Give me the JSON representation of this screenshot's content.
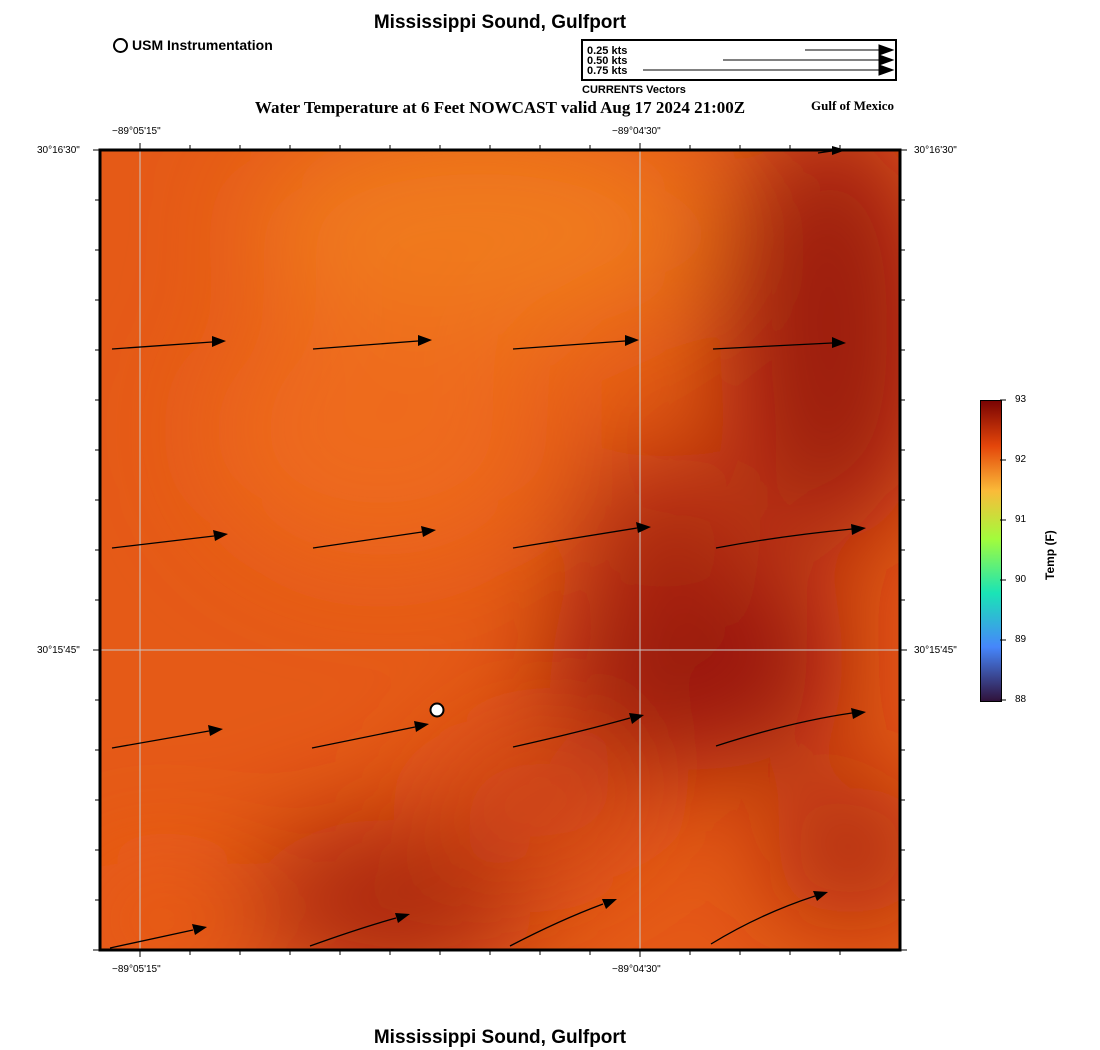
{
  "header": {
    "title": "Mississippi Sound, Gulfport",
    "legend_marker_label": "USM Instrumentation",
    "map_title": "Water Temperature at 6 Feet NOWCAST valid Aug 17 2024 21:00Z",
    "region_label": "Gulf of Mexico"
  },
  "vector_legend": {
    "rows": [
      "0.25 kts",
      "0.50 kts",
      "0.75 kts"
    ],
    "caption": "CURRENTS Vectors"
  },
  "axes": {
    "lon_ticks": [
      "−89°05'15\"",
      "−89°04'30\""
    ],
    "lat_ticks": [
      "30°16'30\"",
      "30°15'45\""
    ]
  },
  "colorbar": {
    "title": "Temp (F)",
    "ticks": [
      "88",
      "89",
      "90",
      "91",
      "92",
      "93"
    ],
    "min": 88,
    "max": 93
  },
  "footer": {
    "title": "Mississippi Sound, Gulfport"
  },
  "colors": {
    "warm": "#e8551a",
    "hot": "#9a1a08",
    "light": "#f07a1e"
  },
  "icons": {
    "station_marker": "circle-icon",
    "current_vector": "arrow-icon"
  }
}
